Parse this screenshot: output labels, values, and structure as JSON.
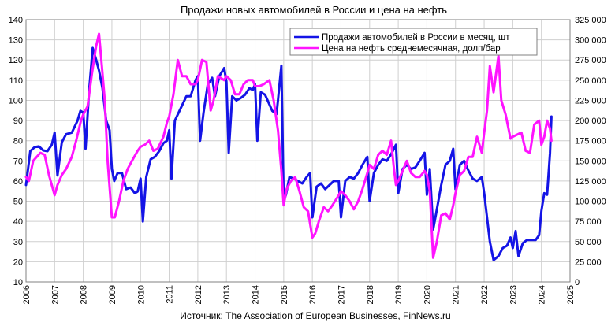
{
  "chart_data": {
    "type": "line",
    "title": "Продажи новых автомобилей в России и цена на нефть",
    "source": "Источник: The Association of European Businesses, FinNews.ru",
    "x_ticks": [
      "2006",
      "2007",
      "2008",
      "2009",
      "2010",
      "2011",
      "2012",
      "2013",
      "2014",
      "2015",
      "2016",
      "2017",
      "2018",
      "2019",
      "2020",
      "2021",
      "2022",
      "2023",
      "2024",
      "2025"
    ],
    "xlim": [
      2006,
      2025
    ],
    "y_left": {
      "range": [
        10,
        140
      ],
      "ticks": [
        "10",
        "20",
        "30",
        "40",
        "50",
        "60",
        "70",
        "80",
        "90",
        "100",
        "110",
        "120",
        "130",
        "140"
      ]
    },
    "y_right": {
      "range": [
        0,
        325000
      ],
      "ticks": [
        "0",
        "25 000",
        "50 000",
        "75 000",
        "100 000",
        "125 000",
        "150 000",
        "175 000",
        "200 000",
        "225 000",
        "250 000",
        "275 000",
        "300 000",
        "325 000"
      ]
    },
    "grid": true,
    "legend_position": "top-right",
    "series": [
      {
        "name": "Продажи автомобилей в России в месяц, шт",
        "axis": "right",
        "color": "#1414e6",
        "points": [
          [
            2006.0,
            120000
          ],
          [
            2006.15,
            162000
          ],
          [
            2006.3,
            167000
          ],
          [
            2006.45,
            168000
          ],
          [
            2006.6,
            163000
          ],
          [
            2006.75,
            162000
          ],
          [
            2006.9,
            170000
          ],
          [
            2007.0,
            185000
          ],
          [
            2007.1,
            132000
          ],
          [
            2007.25,
            173000
          ],
          [
            2007.4,
            183000
          ],
          [
            2007.6,
            185000
          ],
          [
            2007.8,
            200000
          ],
          [
            2007.9,
            212000
          ],
          [
            2008.0,
            210000
          ],
          [
            2008.08,
            165000
          ],
          [
            2008.2,
            235000
          ],
          [
            2008.33,
            290000
          ],
          [
            2008.45,
            275000
          ],
          [
            2008.55,
            262000
          ],
          [
            2008.67,
            240000
          ],
          [
            2008.8,
            200000
          ],
          [
            2008.92,
            188000
          ],
          [
            2009.0,
            140000
          ],
          [
            2009.08,
            125000
          ],
          [
            2009.2,
            135000
          ],
          [
            2009.35,
            135000
          ],
          [
            2009.5,
            115000
          ],
          [
            2009.65,
            117000
          ],
          [
            2009.8,
            110000
          ],
          [
            2009.9,
            112000
          ],
          [
            2010.0,
            128000
          ],
          [
            2010.08,
            75000
          ],
          [
            2010.2,
            130000
          ],
          [
            2010.35,
            152000
          ],
          [
            2010.5,
            155000
          ],
          [
            2010.65,
            162000
          ],
          [
            2010.8,
            172000
          ],
          [
            2010.92,
            175000
          ],
          [
            2011.0,
            188000
          ],
          [
            2011.08,
            128000
          ],
          [
            2011.2,
            200000
          ],
          [
            2011.4,
            215000
          ],
          [
            2011.6,
            230000
          ],
          [
            2011.75,
            230000
          ],
          [
            2011.92,
            250000
          ],
          [
            2012.0,
            255000
          ],
          [
            2012.08,
            175000
          ],
          [
            2012.2,
            210000
          ],
          [
            2012.35,
            245000
          ],
          [
            2012.5,
            253000
          ],
          [
            2012.6,
            230000
          ],
          [
            2012.75,
            255000
          ],
          [
            2012.92,
            265000
          ],
          [
            2013.0,
            248000
          ],
          [
            2013.08,
            160000
          ],
          [
            2013.2,
            230000
          ],
          [
            2013.35,
            225000
          ],
          [
            2013.5,
            228000
          ],
          [
            2013.65,
            232000
          ],
          [
            2013.8,
            240000
          ],
          [
            2013.92,
            238000
          ],
          [
            2014.0,
            245000
          ],
          [
            2014.08,
            175000
          ],
          [
            2014.2,
            235000
          ],
          [
            2014.35,
            232000
          ],
          [
            2014.5,
            220000
          ],
          [
            2014.6,
            212000
          ],
          [
            2014.75,
            208000
          ],
          [
            2014.92,
            268000
          ],
          [
            2015.0,
            100000
          ],
          [
            2015.08,
            108000
          ],
          [
            2015.2,
            130000
          ],
          [
            2015.35,
            128000
          ],
          [
            2015.5,
            125000
          ],
          [
            2015.65,
            122000
          ],
          [
            2015.8,
            130000
          ],
          [
            2015.92,
            135000
          ],
          [
            2016.0,
            80000
          ],
          [
            2016.15,
            118000
          ],
          [
            2016.3,
            122000
          ],
          [
            2016.45,
            115000
          ],
          [
            2016.6,
            120000
          ],
          [
            2016.75,
            125000
          ],
          [
            2016.92,
            125000
          ],
          [
            2017.0,
            80000
          ],
          [
            2017.15,
            125000
          ],
          [
            2017.3,
            130000
          ],
          [
            2017.45,
            128000
          ],
          [
            2017.6,
            135000
          ],
          [
            2017.75,
            145000
          ],
          [
            2017.92,
            155000
          ],
          [
            2018.0,
            100000
          ],
          [
            2018.15,
            135000
          ],
          [
            2018.3,
            145000
          ],
          [
            2018.45,
            152000
          ],
          [
            2018.6,
            150000
          ],
          [
            2018.75,
            158000
          ],
          [
            2018.92,
            170000
          ],
          [
            2019.0,
            110000
          ],
          [
            2019.15,
            140000
          ],
          [
            2019.3,
            145000
          ],
          [
            2019.45,
            140000
          ],
          [
            2019.6,
            142000
          ],
          [
            2019.75,
            150000
          ],
          [
            2019.92,
            160000
          ],
          [
            2020.0,
            108000
          ],
          [
            2020.1,
            140000
          ],
          [
            2020.22,
            65000
          ],
          [
            2020.35,
            90000
          ],
          [
            2020.5,
            120000
          ],
          [
            2020.65,
            145000
          ],
          [
            2020.8,
            150000
          ],
          [
            2020.92,
            165000
          ],
          [
            2021.0,
            115000
          ],
          [
            2021.15,
            145000
          ],
          [
            2021.3,
            150000
          ],
          [
            2021.45,
            138000
          ],
          [
            2021.6,
            128000
          ],
          [
            2021.75,
            125000
          ],
          [
            2021.92,
            130000
          ],
          [
            2022.0,
            110000
          ],
          [
            2022.1,
            80000
          ],
          [
            2022.2,
            50000
          ],
          [
            2022.33,
            27000
          ],
          [
            2022.5,
            32000
          ],
          [
            2022.65,
            42000
          ],
          [
            2022.8,
            45000
          ],
          [
            2022.92,
            55000
          ],
          [
            2023.0,
            42000
          ],
          [
            2023.1,
            63000
          ],
          [
            2023.2,
            32000
          ],
          [
            2023.35,
            48000
          ],
          [
            2023.5,
            52000
          ],
          [
            2023.65,
            52000
          ],
          [
            2023.8,
            52000
          ],
          [
            2023.92,
            58000
          ],
          [
            2024.0,
            88000
          ],
          [
            2024.1,
            110000
          ],
          [
            2024.2,
            108000
          ],
          [
            2024.3,
            160000
          ],
          [
            2024.35,
            205000
          ]
        ]
      },
      {
        "name": "Цена на нефть среднемесячная, долп/бар",
        "axis": "left",
        "color": "#ff14ff",
        "points": [
          [
            2006.0,
            62
          ],
          [
            2006.1,
            60
          ],
          [
            2006.25,
            70
          ],
          [
            2006.5,
            74
          ],
          [
            2006.65,
            73
          ],
          [
            2006.8,
            63
          ],
          [
            2007.0,
            53
          ],
          [
            2007.1,
            58
          ],
          [
            2007.25,
            63
          ],
          [
            2007.4,
            66
          ],
          [
            2007.6,
            72
          ],
          [
            2007.75,
            80
          ],
          [
            2007.92,
            90
          ],
          [
            2008.0,
            93
          ],
          [
            2008.15,
            97
          ],
          [
            2008.3,
            113
          ],
          [
            2008.45,
            127
          ],
          [
            2008.55,
            133
          ],
          [
            2008.65,
            117
          ],
          [
            2008.75,
            100
          ],
          [
            2008.85,
            70
          ],
          [
            2009.0,
            42
          ],
          [
            2009.1,
            42
          ],
          [
            2009.25,
            50
          ],
          [
            2009.4,
            60
          ],
          [
            2009.55,
            66
          ],
          [
            2009.7,
            70
          ],
          [
            2009.9,
            75
          ],
          [
            2010.0,
            77
          ],
          [
            2010.15,
            78
          ],
          [
            2010.3,
            80
          ],
          [
            2010.45,
            75
          ],
          [
            2010.6,
            76
          ],
          [
            2010.8,
            82
          ],
          [
            2010.92,
            89
          ],
          [
            2011.0,
            92
          ],
          [
            2011.15,
            103
          ],
          [
            2011.3,
            120
          ],
          [
            2011.45,
            112
          ],
          [
            2011.6,
            112
          ],
          [
            2011.75,
            108
          ],
          [
            2011.92,
            108
          ],
          [
            2012.0,
            110
          ],
          [
            2012.15,
            120
          ],
          [
            2012.3,
            119
          ],
          [
            2012.45,
            95
          ],
          [
            2012.55,
            100
          ],
          [
            2012.7,
            112
          ],
          [
            2012.92,
            110
          ],
          [
            2013.0,
            112
          ],
          [
            2013.15,
            110
          ],
          [
            2013.3,
            103
          ],
          [
            2013.45,
            103
          ],
          [
            2013.6,
            108
          ],
          [
            2013.75,
            110
          ],
          [
            2013.92,
            110
          ],
          [
            2014.0,
            107
          ],
          [
            2014.15,
            107
          ],
          [
            2014.3,
            108
          ],
          [
            2014.5,
            110
          ],
          [
            2014.65,
            100
          ],
          [
            2014.8,
            85
          ],
          [
            2014.92,
            65
          ],
          [
            2015.0,
            48
          ],
          [
            2015.1,
            56
          ],
          [
            2015.25,
            60
          ],
          [
            2015.4,
            62
          ],
          [
            2015.55,
            55
          ],
          [
            2015.7,
            47
          ],
          [
            2015.85,
            45
          ],
          [
            2016.0,
            32
          ],
          [
            2016.1,
            34
          ],
          [
            2016.25,
            41
          ],
          [
            2016.4,
            47
          ],
          [
            2016.55,
            45
          ],
          [
            2016.7,
            48
          ],
          [
            2016.92,
            53
          ],
          [
            2017.0,
            55
          ],
          [
            2017.15,
            53
          ],
          [
            2017.3,
            50
          ],
          [
            2017.45,
            46
          ],
          [
            2017.6,
            50
          ],
          [
            2017.75,
            56
          ],
          [
            2017.92,
            64
          ],
          [
            2018.0,
            68
          ],
          [
            2018.15,
            66
          ],
          [
            2018.3,
            73
          ],
          [
            2018.45,
            75
          ],
          [
            2018.6,
            73
          ],
          [
            2018.75,
            80
          ],
          [
            2018.85,
            66
          ],
          [
            2018.92,
            58
          ],
          [
            2019.0,
            60
          ],
          [
            2019.15,
            65
          ],
          [
            2019.3,
            70
          ],
          [
            2019.45,
            64
          ],
          [
            2019.6,
            62
          ],
          [
            2019.75,
            62
          ],
          [
            2019.92,
            65
          ],
          [
            2020.0,
            63
          ],
          [
            2020.1,
            55
          ],
          [
            2020.22,
            22
          ],
          [
            2020.35,
            30
          ],
          [
            2020.5,
            43
          ],
          [
            2020.65,
            44
          ],
          [
            2020.8,
            41
          ],
          [
            2020.92,
            48
          ],
          [
            2021.0,
            54
          ],
          [
            2021.15,
            63
          ],
          [
            2021.3,
            65
          ],
          [
            2021.45,
            72
          ],
          [
            2021.6,
            72
          ],
          [
            2021.75,
            82
          ],
          [
            2021.92,
            74
          ],
          [
            2022.0,
            84
          ],
          [
            2022.1,
            95
          ],
          [
            2022.2,
            117
          ],
          [
            2022.33,
            104
          ],
          [
            2022.5,
            122
          ],
          [
            2022.6,
            100
          ],
          [
            2022.75,
            93
          ],
          [
            2022.92,
            81
          ],
          [
            2023.0,
            82
          ],
          [
            2023.15,
            83
          ],
          [
            2023.3,
            84
          ],
          [
            2023.45,
            75
          ],
          [
            2023.6,
            74
          ],
          [
            2023.75,
            88
          ],
          [
            2023.92,
            90
          ],
          [
            2024.0,
            78
          ],
          [
            2024.1,
            82
          ],
          [
            2024.2,
            90
          ],
          [
            2024.3,
            86
          ],
          [
            2024.35,
            80
          ]
        ]
      }
    ]
  }
}
